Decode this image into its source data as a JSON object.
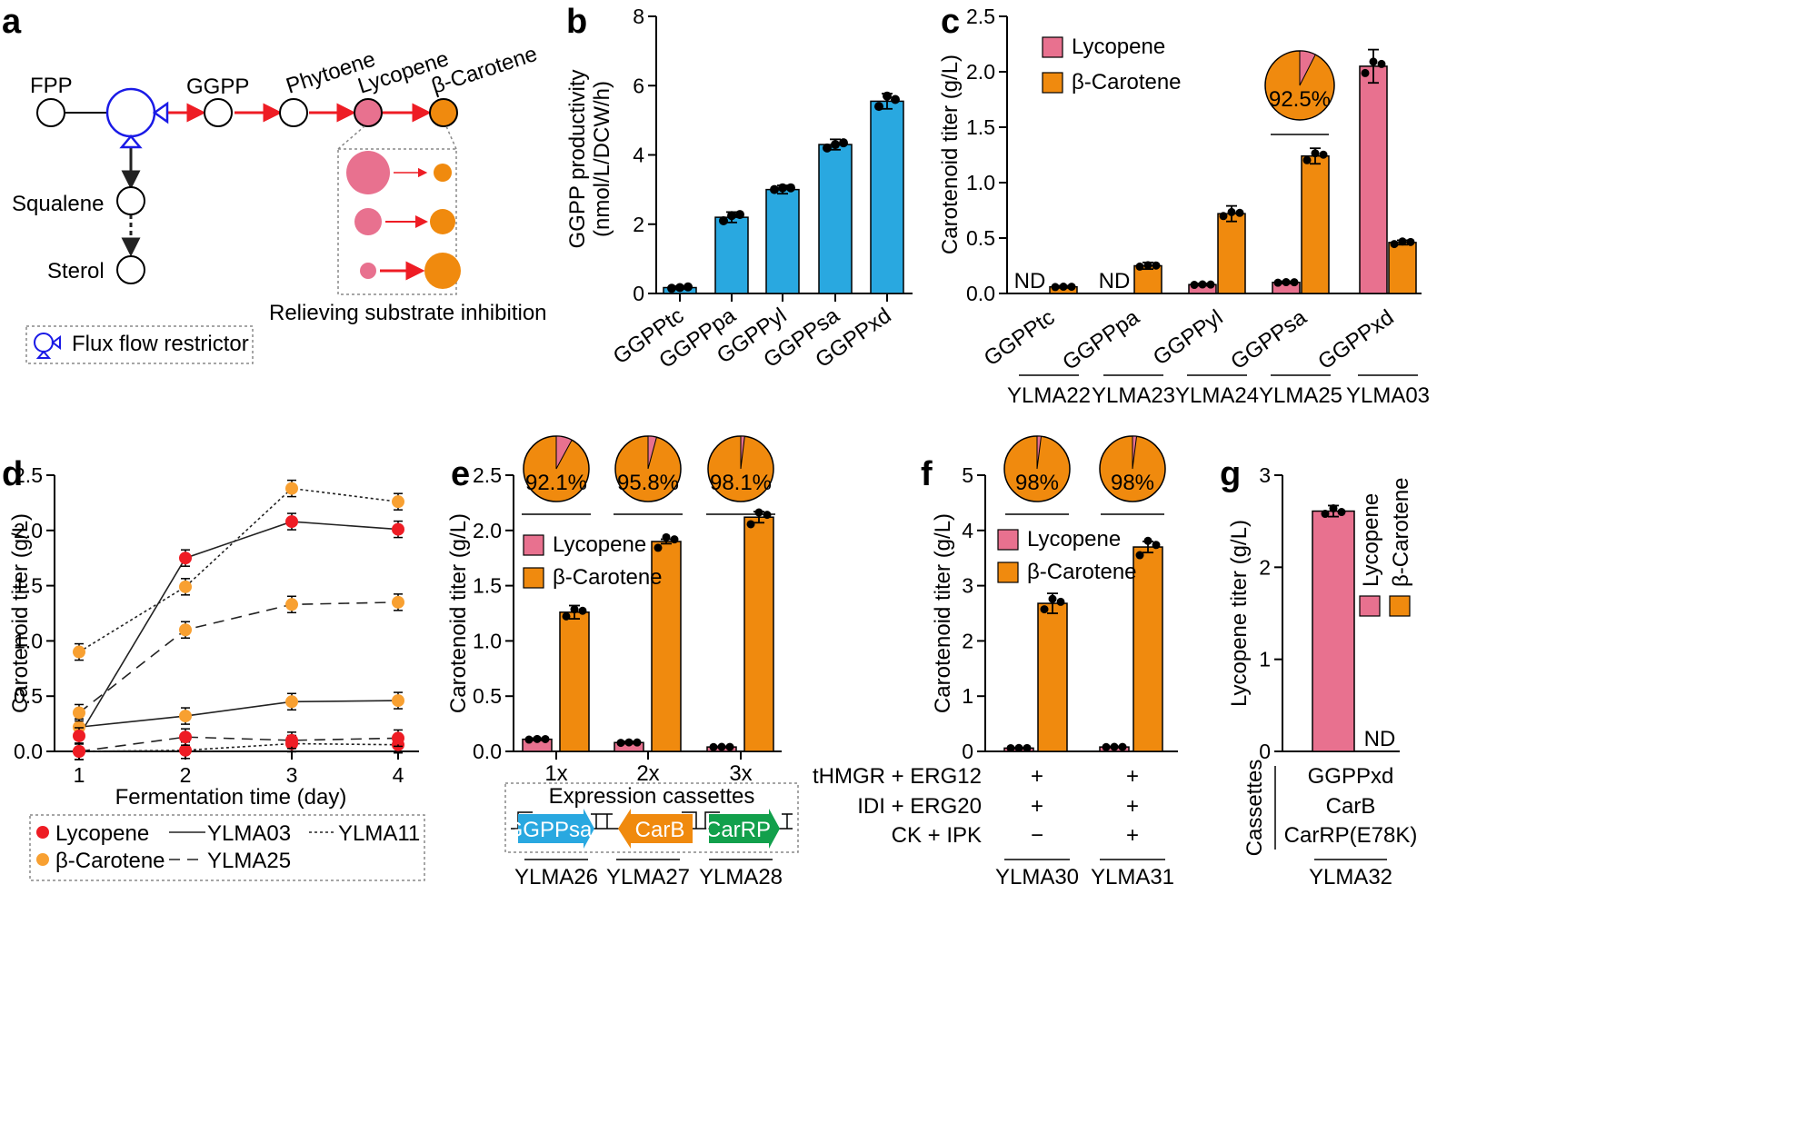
{
  "colors": {
    "lycopene": "#e8718f",
    "carotene": "#f08a0e",
    "blue": "#29a8e0",
    "red": "#ee1c24",
    "green": "#12a04c"
  },
  "panel_letters": [
    "a",
    "b",
    "c",
    "d",
    "e",
    "f",
    "g"
  ],
  "panel_a": {
    "nodes": {
      "fpp": "FPP",
      "ggpp": "GGPP",
      "phytoene": "Phytoene",
      "lycopene": "Lycopene",
      "carotene": "β-Carotene",
      "squalene": "Squalene",
      "sterol": "Sterol"
    },
    "caption": "Relieving substrate inhibition",
    "legend": "Flux flow restrictor"
  },
  "chart_data": [
    {
      "panel": "b",
      "type": "bar",
      "ylabel_line1": "GGPP productivity",
      "ylabel_line2": "(nmol/L/DCW/h)",
      "ylim": [
        0,
        8
      ],
      "yticks": [
        "0",
        "2",
        "4",
        "6",
        "8"
      ],
      "categories": [
        "GGPPtc",
        "GGPPpa",
        "GGPPyl",
        "GGPPsa",
        "GGPPxd"
      ],
      "values": [
        0.17,
        2.2,
        3.0,
        4.3,
        5.55
      ],
      "errors": [
        0.04,
        0.15,
        0.12,
        0.15,
        0.22
      ],
      "points": [
        [
          0.15,
          0.17,
          0.19
        ],
        [
          2.1,
          2.25,
          2.28
        ],
        [
          3.0,
          3.05,
          3.05
        ],
        [
          4.2,
          4.3,
          4.35
        ],
        [
          5.4,
          5.7,
          5.6
        ]
      ]
    },
    {
      "panel": "c",
      "type": "bar",
      "ylabel": "Carotenoid titer (g/L)",
      "ylim": [
        0,
        2.5
      ],
      "yticks": [
        "0.0",
        "0.5",
        "1.0",
        "1.5",
        "2.0",
        "2.5"
      ],
      "categories": [
        "GGPPtc",
        "GGPPpa",
        "GGPPyl",
        "GGPPsa",
        "GGPPxd"
      ],
      "strains": [
        "YLMA22",
        "YLMA23",
        "YLMA24",
        "YLMA25",
        "YLMA03"
      ],
      "legend": [
        "Lycopene",
        "β-Carotene"
      ],
      "nd_label": "ND",
      "pie_label": "92.5%",
      "series": [
        {
          "name": "Lycopene",
          "values": [
            0,
            0,
            0.08,
            0.1,
            2.05
          ],
          "errors": [
            0,
            0,
            0.01,
            0.01,
            0.15
          ]
        },
        {
          "name": "β-Carotene",
          "values": [
            0.06,
            0.25,
            0.72,
            1.24,
            0.46
          ],
          "errors": [
            0.01,
            0.03,
            0.07,
            0.07,
            0.02
          ]
        }
      ]
    },
    {
      "panel": "d",
      "type": "line",
      "xlabel": "Fermentation time (day)",
      "ylabel": "Carotenoid titer (g/L)",
      "xlim": [
        1,
        4
      ],
      "ylim": [
        0,
        2.5
      ],
      "xticks": [
        "1",
        "2",
        "3",
        "4"
      ],
      "yticks": [
        "0.0",
        "0.5",
        "1.0",
        "1.5",
        "2.0",
        "2.5"
      ],
      "legend": {
        "lycopene": "Lycopene",
        "carotene": "β-Carotene",
        "s03": "YLMA03",
        "s11": "YLMA11",
        "s25": "YLMA25"
      },
      "series": [
        {
          "name": "YLMA03 β-Carotene",
          "strain": "YLMA03",
          "pigment": "carotene",
          "y": [
            0.22,
            0.32,
            0.45,
            0.46
          ]
        },
        {
          "name": "YLMA03 Lycopene",
          "strain": "YLMA03",
          "pigment": "lycopene",
          "y": [
            0.14,
            1.75,
            2.08,
            2.01
          ]
        },
        {
          "name": "YLMA11 β-Carotene",
          "strain": "YLMA11",
          "pigment": "carotene",
          "y": [
            0.9,
            1.49,
            2.38,
            2.26
          ]
        },
        {
          "name": "YLMA11 Lycopene",
          "strain": "YLMA11",
          "pigment": "lycopene",
          "y": [
            0.0,
            0.01,
            0.07,
            0.06
          ]
        },
        {
          "name": "YLMA25 β-Carotene",
          "strain": "YLMA25",
          "pigment": "carotene",
          "y": [
            0.35,
            1.1,
            1.33,
            1.35
          ]
        },
        {
          "name": "YLMA25 Lycopene",
          "strain": "YLMA25",
          "pigment": "lycopene",
          "y": [
            0.0,
            0.13,
            0.1,
            0.12
          ]
        }
      ]
    },
    {
      "panel": "e",
      "type": "bar",
      "ylabel": "Carotenoid titer (g/L)",
      "ylim": [
        0,
        2.5
      ],
      "yticks": [
        "0.0",
        "0.5",
        "1.0",
        "1.5",
        "2.0",
        "2.5"
      ],
      "categories": [
        "1x",
        "2x",
        "3x"
      ],
      "strains": [
        "YLMA26",
        "YLMA27",
        "YLMA28"
      ],
      "legend": [
        "Lycopene",
        "β-Carotene"
      ],
      "pies": [
        "92.1%",
        "95.8%",
        "98.1%"
      ],
      "pie_fractions": [
        0.921,
        0.958,
        0.981
      ],
      "cassette_title": "Expression cassettes",
      "cassettes": [
        "GGPPsa",
        "CarB",
        "CarRP"
      ],
      "series": [
        {
          "name": "Lycopene",
          "values": [
            0.11,
            0.08,
            0.04
          ],
          "errors": [
            0.01,
            0.01,
            0.005
          ]
        },
        {
          "name": "β-Carotene",
          "values": [
            1.26,
            1.9,
            2.12
          ],
          "errors": [
            0.06,
            0.02,
            0.05
          ]
        }
      ]
    },
    {
      "panel": "f",
      "type": "bar",
      "ylabel": "Carotenoid titer (g/L)",
      "ylim": [
        0,
        5
      ],
      "yticks": [
        "0",
        "1",
        "2",
        "3",
        "4",
        "5"
      ],
      "categories": [
        "YLMA30",
        "YLMA31"
      ],
      "legend": [
        "Lycopene",
        "β-Carotene"
      ],
      "pies": [
        "98%",
        "98%"
      ],
      "pie_fractions": [
        0.98,
        0.98
      ],
      "rows": [
        {
          "label": "tHMGR + ERG12",
          "values": [
            "+",
            "+"
          ]
        },
        {
          "label": "IDI + ERG20",
          "values": [
            "+",
            "+"
          ]
        },
        {
          "label": "CK + IPK",
          "values": [
            "−",
            "+"
          ]
        }
      ],
      "series": [
        {
          "name": "Lycopene",
          "values": [
            0.06,
            0.08
          ],
          "errors": [
            0.01,
            0.01
          ]
        },
        {
          "name": "β-Carotene",
          "values": [
            2.68,
            3.7
          ],
          "errors": [
            0.18,
            0.1
          ]
        }
      ]
    },
    {
      "panel": "g",
      "type": "bar",
      "ylabel": "Lycopene titer (g/L)",
      "ylim": [
        0,
        3
      ],
      "yticks": [
        "0",
        "1",
        "2",
        "3"
      ],
      "legend": [
        "Lycopene",
        "β-Carotene"
      ],
      "nd_label": "ND",
      "cassettes_label": "Cassettes",
      "cassettes": [
        "GGPPxd",
        "CarB",
        "CarRP(E78K)"
      ],
      "strain": "YLMA32",
      "series": [
        {
          "name": "Lycopene",
          "values": [
            2.61
          ],
          "errors": [
            0.06
          ]
        }
      ]
    }
  ]
}
